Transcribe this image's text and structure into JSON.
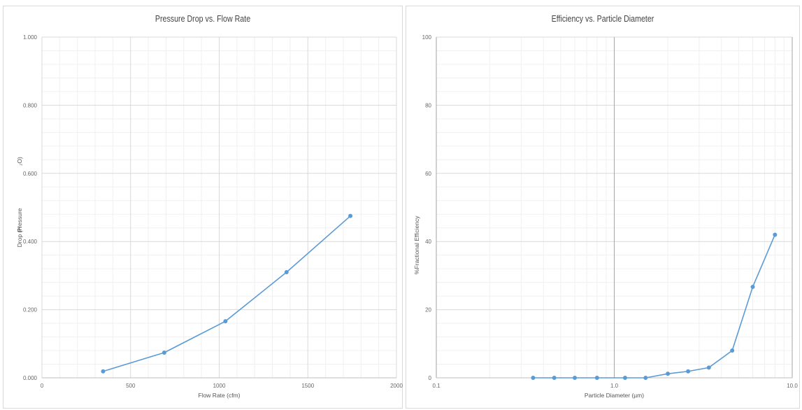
{
  "chart_data": [
    {
      "type": "line",
      "title": "Pressure Drop vs. Flow Rate",
      "xlabel": "Flow Rate (cfm)",
      "ylabel_parts": [
        "Drop (H",
        "Pressure",
        "₂O)"
      ],
      "xlim": [
        0,
        2000
      ],
      "ylim": [
        0,
        1.0
      ],
      "x_ticks": [
        "0",
        "500",
        "1000",
        "1500",
        "2000"
      ],
      "y_ticks": [
        "0.000",
        "0.200",
        "0.400",
        "0.600",
        "0.800",
        "1.000"
      ],
      "grid": true,
      "series": [
        {
          "color": "#5b9bd5",
          "x": [
            345,
            690,
            1035,
            1380,
            1740
          ],
          "y": [
            0.019,
            0.074,
            0.166,
            0.31,
            0.475
          ]
        }
      ]
    },
    {
      "type": "line",
      "title": "Efficiency vs. Particle Diameter",
      "xlabel": "Particle Diameter (µm)",
      "ylabel_parts": [
        "Fractional Efficiency",
        "%"
      ],
      "x_scale": "log",
      "xlim": [
        0.1,
        10
      ],
      "ylim": [
        0,
        100
      ],
      "x_ticks": [
        "0.1",
        "1.0",
        "10.0"
      ],
      "y_ticks": [
        "0",
        "20",
        "40",
        "60",
        "80",
        "100"
      ],
      "grid": true,
      "series": [
        {
          "color": "#5b9bd5",
          "x": [
            0.35,
            0.46,
            0.6,
            0.8,
            1.15,
            1.5,
            2.0,
            2.6,
            3.4,
            4.6,
            6.0,
            8.0
          ],
          "y": [
            0,
            0,
            0,
            0,
            0,
            0,
            1.2,
            1.9,
            3.0,
            8.0,
            26.7,
            42.0
          ]
        }
      ]
    }
  ]
}
